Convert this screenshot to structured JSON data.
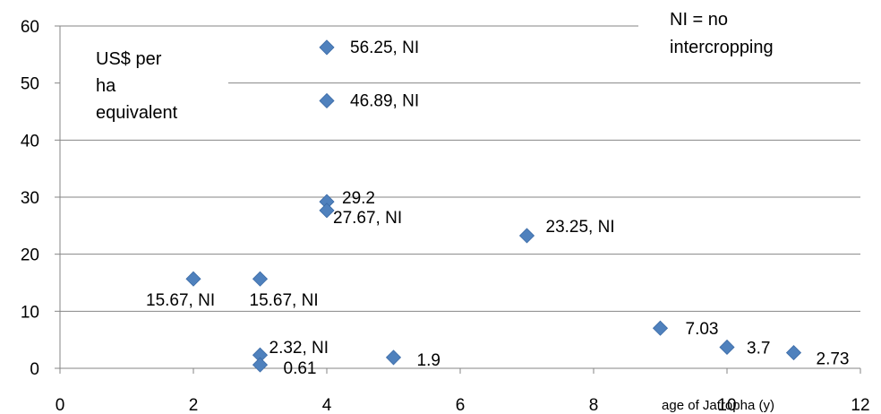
{
  "chart_data": {
    "type": "scatter",
    "xlabel": "age of Jatropha (y)",
    "ylabel_annotation": [
      "US$ per",
      "ha",
      "equivalent"
    ],
    "legend_note": [
      "NI = no",
      "intercropping"
    ],
    "xlim": [
      0,
      12
    ],
    "ylim": [
      0,
      60
    ],
    "x_ticks": [
      "0",
      "2",
      "4",
      "6",
      "8",
      "10",
      "12"
    ],
    "y_ticks": [
      "0",
      "10",
      "20",
      "30",
      "40",
      "50",
      "60"
    ],
    "grid": "horizontal",
    "marker_color": "#4F81BD",
    "points": [
      {
        "x": 2,
        "y": 15.67,
        "label": "15.67, NI"
      },
      {
        "x": 3,
        "y": 15.67,
        "label": "15.67, NI"
      },
      {
        "x": 3,
        "y": 2.32,
        "label": "2.32, NI"
      },
      {
        "x": 3,
        "y": 0.61,
        "label": "0.61"
      },
      {
        "x": 4,
        "y": 56.25,
        "label": "56.25, NI"
      },
      {
        "x": 4,
        "y": 46.89,
        "label": "46.89, NI"
      },
      {
        "x": 4,
        "y": 29.2,
        "label": "29.2"
      },
      {
        "x": 4,
        "y": 27.67,
        "label": "27.67, NI"
      },
      {
        "x": 5,
        "y": 1.9,
        "label": "1.9"
      },
      {
        "x": 7,
        "y": 23.25,
        "label": "23.25, NI"
      },
      {
        "x": 9,
        "y": 7.03,
        "label": "7.03"
      },
      {
        "x": 10,
        "y": 3.7,
        "label": "3.7"
      },
      {
        "x": 11,
        "y": 2.73,
        "label": "2.73"
      }
    ]
  }
}
